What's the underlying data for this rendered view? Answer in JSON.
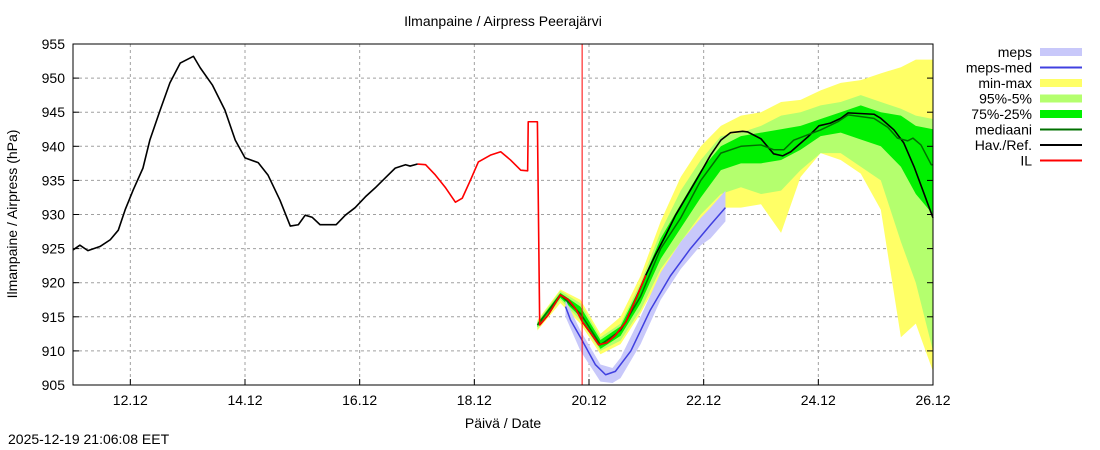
{
  "chart_data": {
    "type": "area",
    "title": "Ilmanpaine / Airpress Peerajärvi",
    "xlabel": "Päivä / Date",
    "ylabel": "Ilmanpaine / Airpress (hPa)",
    "x_unit": "days since 11.12 00:00",
    "xlim": [
      0,
      15
    ],
    "ylim": [
      905,
      955
    ],
    "yticks": [
      905,
      910,
      915,
      920,
      925,
      930,
      935,
      940,
      945,
      950,
      955
    ],
    "xticks": [
      {
        "x": 1,
        "label": "12.12"
      },
      {
        "x": 3,
        "label": "14.12"
      },
      {
        "x": 5,
        "label": "16.12"
      },
      {
        "x": 7,
        "label": "18.12"
      },
      {
        "x": 9,
        "label": "20.12"
      },
      {
        "x": 11,
        "label": "22.12"
      },
      {
        "x": 13,
        "label": "24.12"
      },
      {
        "x": 15,
        "label": "26.12"
      }
    ],
    "grid": true,
    "legend_position": "right",
    "now_marker_x": 8.88,
    "legend": [
      {
        "name": "meps",
        "kind": "band",
        "color": "#c8c8fa"
      },
      {
        "name": "meps-med",
        "kind": "line",
        "color": "#4040e0"
      },
      {
        "name": "min-max",
        "kind": "band",
        "color": "#ffff66"
      },
      {
        "name": "95%-5%",
        "kind": "band",
        "color": "#b4ff6e"
      },
      {
        "name": "75%-25%",
        "kind": "band",
        "color": "#00f000"
      },
      {
        "name": "mediaani",
        "kind": "line",
        "color": "#007000"
      },
      {
        "name": "Hav./Ref.",
        "kind": "line",
        "color": "#000000"
      },
      {
        "name": "IL",
        "kind": "line",
        "color": "#ff0000"
      }
    ],
    "bands": {
      "min-max": [
        [
          8.1,
          913,
          914.5
        ],
        [
          8.5,
          917,
          919
        ],
        [
          8.85,
          914,
          917.5
        ],
        [
          9.2,
          909.5,
          912.5
        ],
        [
          9.55,
          911,
          915
        ],
        [
          9.9,
          915.5,
          921
        ],
        [
          10.25,
          921,
          929
        ],
        [
          10.6,
          924,
          935.5
        ],
        [
          10.95,
          928.5,
          940
        ],
        [
          11.3,
          931,
          943
        ],
        [
          11.65,
          931,
          944.5
        ],
        [
          12.0,
          931.5,
          945
        ],
        [
          12.35,
          927.3,
          946.5
        ],
        [
          12.69,
          935.5,
          946.8
        ],
        [
          13.04,
          939,
          948.2
        ],
        [
          13.39,
          938,
          949.3
        ],
        [
          13.74,
          936,
          949.7
        ],
        [
          14.09,
          930.7,
          950.7
        ],
        [
          14.44,
          912,
          951.6
        ],
        [
          14.7,
          914,
          952.7
        ],
        [
          15.0,
          907,
          952.7
        ]
      ],
      "95%-5%": [
        [
          8.1,
          913.2,
          914.3
        ],
        [
          8.5,
          917.5,
          918.8
        ],
        [
          8.85,
          914.5,
          917
        ],
        [
          9.2,
          910,
          912
        ],
        [
          9.55,
          911.5,
          914
        ],
        [
          9.9,
          916,
          920
        ],
        [
          10.25,
          922,
          927.5
        ],
        [
          10.6,
          926,
          933.5
        ],
        [
          10.95,
          930,
          938
        ],
        [
          11.3,
          933,
          941.5
        ],
        [
          11.65,
          934,
          942
        ],
        [
          12.0,
          933,
          943
        ],
        [
          12.35,
          933.5,
          944.5
        ],
        [
          12.69,
          936.5,
          945
        ],
        [
          13.04,
          939,
          946
        ],
        [
          13.39,
          939,
          946.5
        ],
        [
          13.74,
          937,
          947.5
        ],
        [
          14.09,
          935,
          946.5
        ],
        [
          14.44,
          926,
          945.5
        ],
        [
          14.7,
          920,
          944.5
        ],
        [
          15.0,
          910,
          944
        ]
      ],
      "75%-25%": [
        [
          8.1,
          913.5,
          914.1
        ],
        [
          8.5,
          917.8,
          918.5
        ],
        [
          8.85,
          915,
          916.5
        ],
        [
          9.2,
          910.3,
          911.6
        ],
        [
          9.55,
          912.2,
          913.6
        ],
        [
          9.9,
          917,
          919.5
        ],
        [
          10.25,
          923.5,
          926.5
        ],
        [
          10.6,
          928,
          931.5
        ],
        [
          10.95,
          932.5,
          936.5
        ],
        [
          11.3,
          936.5,
          940
        ],
        [
          11.65,
          937.5,
          941.5
        ],
        [
          12.0,
          937.5,
          942
        ],
        [
          12.35,
          938,
          942.5
        ],
        [
          12.69,
          939.5,
          943
        ],
        [
          13.04,
          941.5,
          944
        ],
        [
          13.39,
          942,
          945
        ],
        [
          13.74,
          941,
          946
        ],
        [
          14.09,
          940,
          945
        ],
        [
          14.44,
          937,
          944.5
        ],
        [
          14.7,
          933,
          943
        ],
        [
          15.0,
          930,
          942.5
        ]
      ],
      "meps": [
        [
          8.59,
          915,
          917.5
        ],
        [
          8.85,
          910,
          913
        ],
        [
          9.2,
          905.5,
          908
        ],
        [
          9.41,
          905.3,
          907.5
        ],
        [
          9.55,
          906,
          909
        ],
        [
          9.9,
          911,
          915
        ],
        [
          10.25,
          917.5,
          921.5
        ],
        [
          10.6,
          922,
          926
        ],
        [
          10.95,
          925.5,
          929.5
        ],
        [
          11.12,
          926.5,
          931
        ],
        [
          11.38,
          929,
          933.5
        ]
      ]
    },
    "lines": {
      "meps-med": [
        [
          8.59,
          916.5
        ],
        [
          8.68,
          914.5
        ],
        [
          8.85,
          912
        ],
        [
          9.11,
          908
        ],
        [
          9.29,
          906.5
        ],
        [
          9.46,
          907
        ],
        [
          9.73,
          910
        ],
        [
          10.07,
          916
        ],
        [
          10.42,
          921
        ],
        [
          10.77,
          925
        ],
        [
          11.12,
          928.5
        ],
        [
          11.38,
          931
        ]
      ],
      "mediaani": [
        [
          8.1,
          913.8
        ],
        [
          8.5,
          918.2
        ],
        [
          8.85,
          915.5
        ],
        [
          9.2,
          910.9
        ],
        [
          9.55,
          913
        ],
        [
          9.9,
          918
        ],
        [
          10.25,
          925
        ],
        [
          10.6,
          929.5
        ],
        [
          10.95,
          935
        ],
        [
          11.3,
          939
        ],
        [
          11.65,
          940
        ],
        [
          12.0,
          940.2
        ],
        [
          12.22,
          939.5
        ],
        [
          12.4,
          939.5
        ],
        [
          12.57,
          940.9
        ],
        [
          12.82,
          941.7
        ],
        [
          13.04,
          942.4
        ],
        [
          13.34,
          943.6
        ],
        [
          13.52,
          944.6
        ],
        [
          13.97,
          944.1
        ],
        [
          14.21,
          942.8
        ],
        [
          14.38,
          941.2
        ],
        [
          14.56,
          940.8
        ],
        [
          14.65,
          941.2
        ],
        [
          14.79,
          940.2
        ],
        [
          14.97,
          937.3
        ],
        [
          15.0,
          937.3
        ]
      ],
      "Hav./Ref.": [
        [
          0,
          924.8
        ],
        [
          0.12,
          925.5
        ],
        [
          0.26,
          924.7
        ],
        [
          0.47,
          925.3
        ],
        [
          0.65,
          926.3
        ],
        [
          0.79,
          927.7
        ],
        [
          0.91,
          930.7
        ],
        [
          1.05,
          933.6
        ],
        [
          1.22,
          936.8
        ],
        [
          1.34,
          940.9
        ],
        [
          1.52,
          945.3
        ],
        [
          1.69,
          949.3
        ],
        [
          1.87,
          952.2
        ],
        [
          2.1,
          953.2
        ],
        [
          2.22,
          951.5
        ],
        [
          2.43,
          949
        ],
        [
          2.65,
          945.3
        ],
        [
          2.83,
          940.9
        ],
        [
          3.0,
          938.3
        ],
        [
          3.23,
          937.6
        ],
        [
          3.4,
          935.8
        ],
        [
          3.61,
          932.1
        ],
        [
          3.79,
          928.3
        ],
        [
          3.93,
          928.5
        ],
        [
          4.05,
          929.9
        ],
        [
          4.17,
          929.6
        ],
        [
          4.31,
          928.5
        ],
        [
          4.45,
          928.5
        ],
        [
          4.59,
          928.5
        ],
        [
          4.75,
          929.9
        ],
        [
          4.92,
          931
        ],
        [
          5.1,
          932.6
        ],
        [
          5.27,
          933.9
        ],
        [
          5.45,
          935.4
        ],
        [
          5.62,
          936.8
        ],
        [
          5.8,
          937.3
        ],
        [
          5.88,
          937.1
        ],
        [
          6.01,
          937.4
        ]
      ],
      "Hav./Ref.-forecast": [
        [
          8.14,
          913.8
        ],
        [
          8.29,
          915.3
        ],
        [
          8.5,
          918.2
        ],
        [
          8.64,
          917.5
        ],
        [
          8.78,
          916
        ],
        [
          8.89,
          914.2
        ],
        [
          9.03,
          912.6
        ],
        [
          9.17,
          910.9
        ],
        [
          9.31,
          911.2
        ],
        [
          9.46,
          912.3
        ],
        [
          9.64,
          914.2
        ],
        [
          9.81,
          917.5
        ],
        [
          9.99,
          921.1
        ],
        [
          10.16,
          924.1
        ],
        [
          10.34,
          927
        ],
        [
          10.51,
          929.9
        ],
        [
          10.77,
          933.6
        ],
        [
          10.95,
          936.2
        ],
        [
          11.12,
          938.7
        ],
        [
          11.3,
          940.9
        ],
        [
          11.47,
          942
        ],
        [
          11.68,
          942.2
        ],
        [
          11.77,
          942.1
        ],
        [
          12.0,
          941.1
        ],
        [
          12.22,
          938.9
        ],
        [
          12.38,
          938.6
        ],
        [
          12.52,
          939.2
        ],
        [
          12.82,
          941.4
        ],
        [
          13.01,
          943
        ],
        [
          13.21,
          943.4
        ],
        [
          13.39,
          944.1
        ],
        [
          13.52,
          944.9
        ],
        [
          13.97,
          944.7
        ],
        [
          14.09,
          944.1
        ],
        [
          14.32,
          942.4
        ],
        [
          14.49,
          940.5
        ],
        [
          14.67,
          937
        ],
        [
          14.82,
          933.6
        ],
        [
          15.0,
          929.5
        ]
      ],
      "IL": [
        [
          6.01,
          937.4
        ],
        [
          6.15,
          937.3
        ],
        [
          6.32,
          935.8
        ],
        [
          6.5,
          933.9
        ],
        [
          6.67,
          931.8
        ],
        [
          6.79,
          932.4
        ],
        [
          6.93,
          935
        ],
        [
          7.07,
          937.7
        ],
        [
          7.28,
          938.7
        ],
        [
          7.46,
          939.2
        ],
        [
          7.63,
          938
        ],
        [
          7.81,
          936.5
        ],
        [
          7.93,
          936.4
        ],
        [
          7.94,
          943.6
        ],
        [
          8.1,
          943.6
        ],
        [
          8.14,
          913.8
        ],
        [
          8.29,
          915.3
        ],
        [
          8.5,
          918.2
        ],
        [
          8.64,
          917.5
        ],
        [
          8.78,
          916
        ],
        [
          8.89,
          914.2
        ],
        [
          9.03,
          912.6
        ],
        [
          9.17,
          910.9
        ],
        [
          9.31,
          911.2
        ],
        [
          9.46,
          912.3
        ],
        [
          9.64,
          914.2
        ],
        [
          9.81,
          917.5
        ],
        [
          9.99,
          921.1
        ]
      ]
    }
  },
  "footer": {
    "timestamp": "2025-12-19 21:06:08 EET"
  }
}
